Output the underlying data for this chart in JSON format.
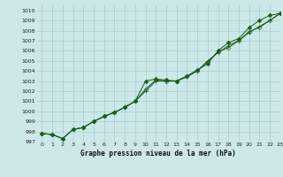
{
  "title": "Graphe pression niveau de la mer (hPa)",
  "xlim": [
    -0.5,
    23
  ],
  "ylim": [
    997,
    1010.5
  ],
  "xticks": [
    0,
    1,
    2,
    3,
    4,
    5,
    6,
    7,
    8,
    9,
    10,
    11,
    12,
    13,
    14,
    15,
    16,
    17,
    18,
    19,
    20,
    21,
    22,
    23
  ],
  "yticks": [
    997,
    998,
    999,
    1000,
    1001,
    1002,
    1003,
    1004,
    1005,
    1006,
    1007,
    1008,
    1009,
    1010
  ],
  "background_color": "#cce8e8",
  "grid_color": "#aacccc",
  "line_color": "#1a5c1a",
  "series1": [
    997.8,
    997.7,
    997.3,
    998.2,
    998.4,
    999.0,
    999.5,
    999.9,
    1000.4,
    1001.0,
    1003.0,
    1003.2,
    1003.1,
    1003.0,
    1003.5,
    1004.1,
    1004.7,
    1006.0,
    1006.8,
    1007.2,
    1008.3,
    1009.0,
    1009.5,
    1009.7
  ],
  "series2": [
    997.8,
    997.7,
    997.3,
    998.2,
    998.4,
    999.0,
    999.5,
    999.9,
    1000.4,
    1001.0,
    1002.0,
    1003.0,
    1003.0,
    1003.0,
    1003.4,
    1004.0,
    1005.0,
    1005.8,
    1006.5,
    1007.0,
    1007.8,
    1008.4,
    1009.0,
    1009.7
  ],
  "series3": [
    997.8,
    997.7,
    997.3,
    998.2,
    998.4,
    999.0,
    999.5,
    999.9,
    1000.4,
    1001.0,
    1002.2,
    1003.1,
    1003.0,
    1003.0,
    1003.5,
    1004.0,
    1004.9,
    1005.9,
    1006.3,
    1007.0,
    1007.9,
    1008.3,
    1009.0,
    1009.7
  ]
}
